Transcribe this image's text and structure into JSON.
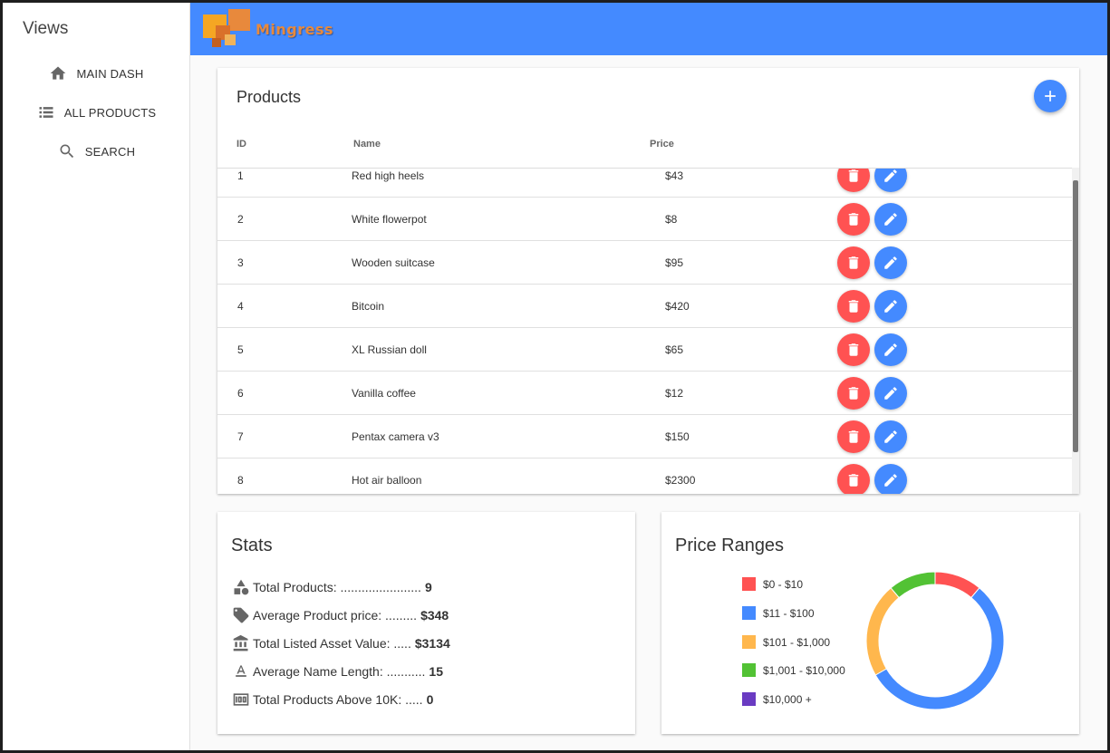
{
  "sidebar": {
    "title": "Views",
    "items": [
      {
        "label": "MAIN DASH",
        "icon": "home-icon"
      },
      {
        "label": "ALL PRODUCTS",
        "icon": "list-icon"
      },
      {
        "label": "SEARCH",
        "icon": "search-icon"
      }
    ]
  },
  "header": {
    "brand": "Mingress",
    "accent": "#448aff"
  },
  "products": {
    "title": "Products",
    "columns": {
      "id": "ID",
      "name": "Name",
      "price": "Price"
    },
    "rows": [
      {
        "id": "1",
        "name": "Red high heels",
        "price": "$43"
      },
      {
        "id": "2",
        "name": "White flowerpot",
        "price": "$8"
      },
      {
        "id": "3",
        "name": "Wooden suitcase",
        "price": "$95"
      },
      {
        "id": "4",
        "name": "Bitcoin",
        "price": "$420"
      },
      {
        "id": "5",
        "name": "XL Russian doll",
        "price": "$65"
      },
      {
        "id": "6",
        "name": "Vanilla coffee",
        "price": "$12"
      },
      {
        "id": "7",
        "name": "Pentax camera v3",
        "price": "$150"
      },
      {
        "id": "8",
        "name": "Hot air balloon",
        "price": "$2300"
      }
    ],
    "delete_color": "#ff5252",
    "edit_color": "#448aff"
  },
  "stats": {
    "title": "Stats",
    "lines": [
      {
        "label": "Total Products: .......................",
        "value": "9",
        "icon": "shapes-icon"
      },
      {
        "label": "Average Product price: .........",
        "value": "$348",
        "icon": "tag-icon"
      },
      {
        "label": "Total Listed Asset Value: .....",
        "value": "$3134",
        "icon": "bank-icon"
      },
      {
        "label": "Average Name Length: ...........",
        "value": "15",
        "icon": "text-format-icon"
      },
      {
        "label": "Total Products Above 10K: .....",
        "value": "0",
        "icon": "money-icon"
      }
    ]
  },
  "price_ranges": {
    "title": "Price Ranges",
    "legend": [
      {
        "label": "$0 - $10",
        "color": "#ff5252"
      },
      {
        "label": "$11 - $100",
        "color": "#448aff"
      },
      {
        "label": "$101 - $1,000",
        "color": "#ffb74d"
      },
      {
        "label": "$1,001 - $10,000",
        "color": "#52c234"
      },
      {
        "label": "$10,000 +",
        "color": "#6a3bc2"
      }
    ]
  },
  "chart_data": {
    "type": "pie",
    "variant": "doughnut",
    "categories": [
      "$0 - $10",
      "$11 - $100",
      "$101 - $1,000",
      "$1,001 - $10,000",
      "$10,000 +"
    ],
    "values": [
      1,
      5,
      2,
      1,
      0
    ],
    "colors": [
      "#ff5252",
      "#448aff",
      "#ffb74d",
      "#52c234",
      "#6a3bc2"
    ],
    "legend": "left"
  }
}
